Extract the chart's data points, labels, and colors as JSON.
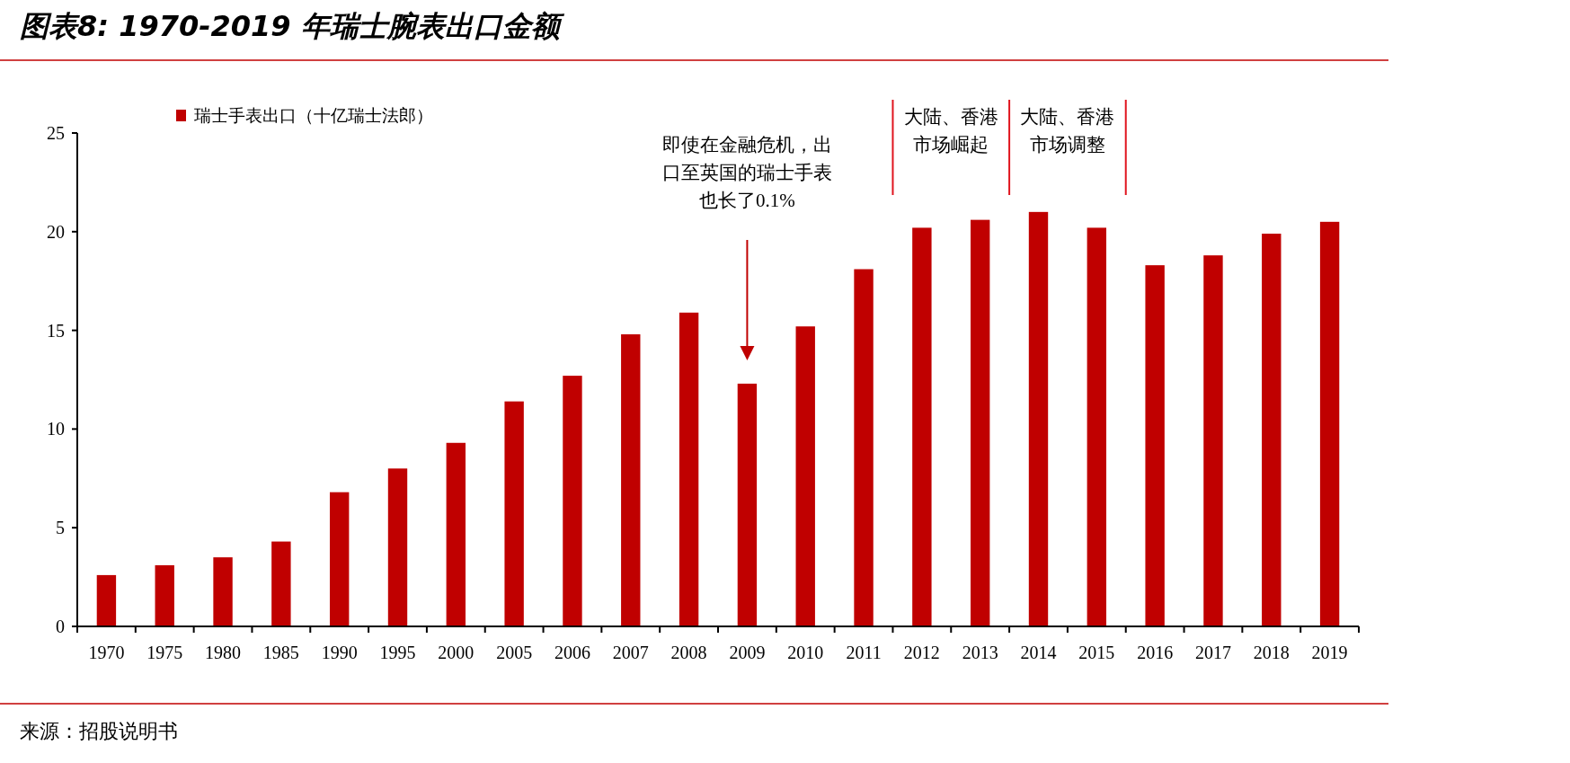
{
  "chart_data": {
    "type": "bar",
    "title": "图表8: 1970-2019 年瑞士腕表出口金额",
    "categories": [
      "1970",
      "1975",
      "1980",
      "1985",
      "1990",
      "1995",
      "2000",
      "2005",
      "2006",
      "2007",
      "2008",
      "2009",
      "2010",
      "2011",
      "2012",
      "2013",
      "2014",
      "2015",
      "2016",
      "2017",
      "2018",
      "2019"
    ],
    "series": [
      {
        "name": "瑞士手表出口（十亿瑞士法郎）",
        "color": "#c00000",
        "values": [
          2.6,
          3.1,
          3.5,
          4.3,
          6.8,
          8.0,
          9.3,
          11.4,
          12.7,
          14.8,
          15.9,
          12.3,
          15.2,
          18.1,
          20.2,
          20.6,
          21.0,
          20.2,
          18.3,
          18.8,
          19.9,
          20.5
        ]
      }
    ],
    "ylim": [
      0,
      25
    ],
    "yticks": [
      0,
      5,
      10,
      15,
      20,
      25
    ],
    "grid": false,
    "legend": "top left",
    "annotations": [
      "即使在金融危机，出口至英国的瑞士手表也长了0.1%",
      "大陆、香港市场崛起",
      "大陆、香港市场调整",
      "来源：招股说明书"
    ]
  }
}
